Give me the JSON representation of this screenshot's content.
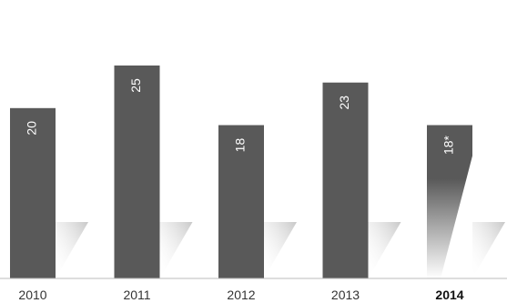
{
  "chart_data": {
    "type": "bar",
    "title": "",
    "xlabel": "",
    "ylabel": "",
    "categories": [
      "2010",
      "2011",
      "2012",
      "2013",
      "2014"
    ],
    "values": [
      20,
      25,
      18,
      23,
      18
    ],
    "data_labels": [
      "20",
      "25",
      "18",
      "23",
      "18*"
    ],
    "highlight_category": "2014",
    "ylim": [
      0,
      25
    ],
    "grid": false,
    "legend": "none"
  },
  "colors": {
    "bar": "#595959",
    "shadow": "#cfcfcf",
    "axis": "#bbbbbb"
  }
}
